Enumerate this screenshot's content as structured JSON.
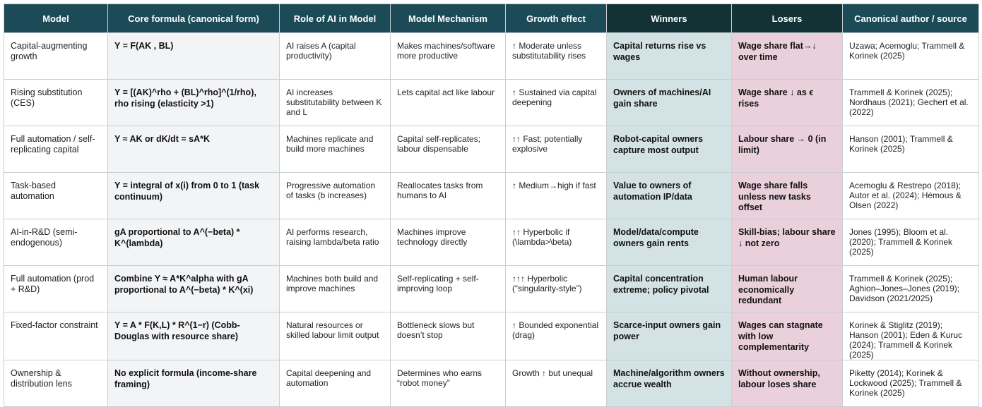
{
  "table": {
    "header": [
      "Model",
      "Core formula (canonical form)",
      "Role of AI in Model",
      "Model Mechanism",
      "Growth effect",
      "Winners",
      "Losers",
      "Canonical author / source"
    ],
    "rows": [
      [
        "Capital-augmenting growth",
        "Y = F(AK , BL)",
        "AI raises A (capital productivity)",
        "Makes machines/software more productive",
        "↑ Moderate unless substitutability rises",
        "Capital returns rise vs wages",
        "Wage share flat→↓ over time",
        "Uzawa; Acemoglu; Trammell & Korinek (2025)"
      ],
      [
        "Rising substitution (CES)",
        "Y = [(AK)^rho + (BL)^rho]^(1/rho), rho rising (elasticity >1)",
        "AI increases substitutability between K and L",
        "Lets capital act like labour",
        "↑ Sustained via capital deepening",
        "Owners of machines/AI gain share",
        "Wage share ↓ as ϵ rises",
        "Trammell & Korinek (2025); Nordhaus (2021); Gechert et al. (2022)"
      ],
      [
        "Full automation / self-replicating capital",
        "Y ≈ AK or dK/dt = sA*K",
        "Machines replicate and build more machines",
        "Capital self-replicates; labour dispensable",
        "↑↑ Fast; potentially explosive",
        "Robot-capital owners capture most output",
        "Labour share → 0 (in limit)",
        "Hanson (2001); Trammell & Korinek (2025)"
      ],
      [
        "Task-based automation",
        "Y = integral of x(i) from 0 to 1 (task continuum)",
        "Progressive automation of tasks (b increases)",
        "Reallocates tasks from humans to AI",
        "↑ Medium→high if fast",
        "Value to owners of automation IP/data",
        "Wage share falls unless new tasks offset",
        "Acemoglu & Restrepo (2018); Autor et al. (2024); Hémous & Olsen (2022)"
      ],
      [
        "AI-in-R&D (semi-endogenous)",
        "gA proportional to A^(−beta) * K^(lambda)",
        "AI performs research, raising lambda/beta ratio",
        "Machines improve technology directly",
        "↑↑ Hyperbolic if (\\lambda>\\beta)",
        "Model/data/compute owners gain rents",
        "Skill-bias; labour share ↓ not zero",
        "Jones (1995); Bloom et al. (2020); Trammell & Korinek (2025)"
      ],
      [
        "Full automation (prod + R&D)",
        "Combine Y ≈ A*K^alpha with gA proportional to A^(−beta) * K^(xi)",
        "Machines both build and improve machines",
        "Self-replicating + self-improving loop",
        "↑↑↑ Hyperbolic (“singularity-style”)",
        "Capital concentration extreme; policy pivotal",
        "Human labour economically redundant",
        "Trammell & Korinek (2025); Aghion–Jones–Jones (2019); Davidson (2021/2025)"
      ],
      [
        "Fixed-factor constraint",
        "Y = A * F(K,L) * R^(1−r) (Cobb-Douglas with resource share)",
        "Natural resources or skilled labour limit output",
        "Bottleneck slows but doesn’t stop",
        "↑ Bounded exponential (drag)",
        "Scarce-input owners gain power",
        "Wages can stagnate with low complementarity",
        "Korinek & Stiglitz (2019); Hanson (2001); Eden & Kuruc (2024); Trammell & Korinek (2025)"
      ],
      [
        "Ownership & distribution lens",
        "No explicit formula (income-share framing)",
        "Capital deepening and automation",
        "Determines who earns “robot money”",
        "Growth ↑ but unequal",
        "Machine/algorithm owners accrue wealth",
        "Without ownership, labour loses share",
        "Piketty (2014); Korinek & Lockwood (2025); Trammell & Korinek (2025)"
      ]
    ]
  }
}
